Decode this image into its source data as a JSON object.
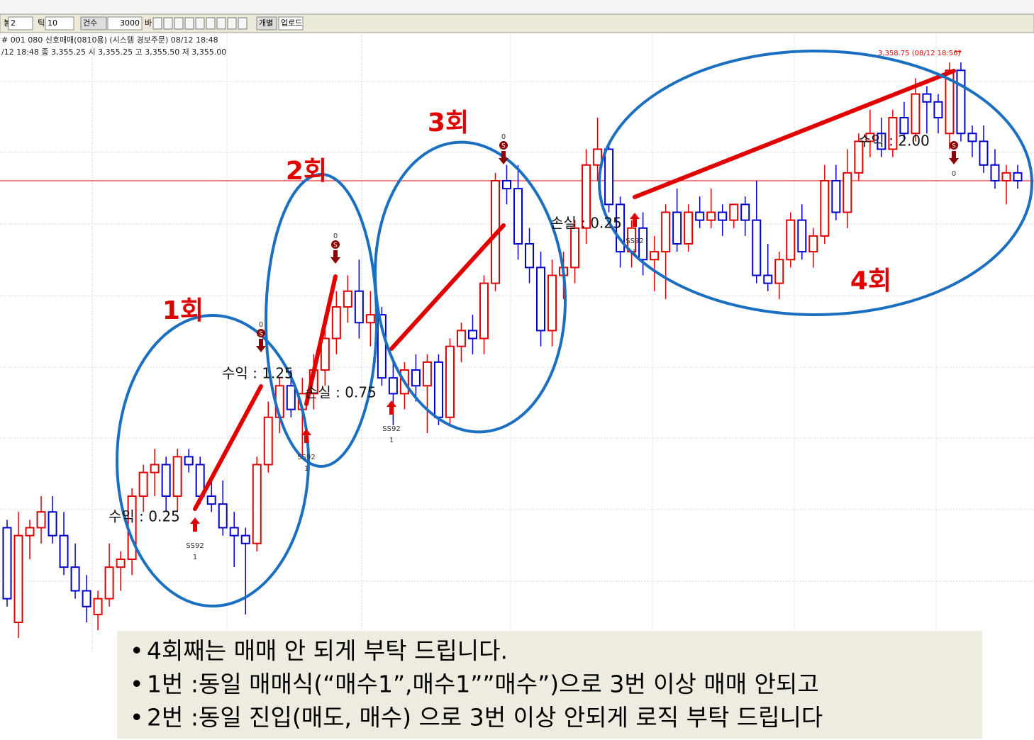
{
  "toolbar": {
    "items": [
      "봉",
      "2",
      "틱",
      "10",
      "건수",
      "3000",
      "바",
      "개별",
      "업로드"
    ]
  },
  "header": {
    "line1": "# 001 080 신호매매(0810용) (시스템 경보주문) 08/12 18:48",
    "line2": "/12 18:48  종 3,355.25  시 3,355.25 고 3,355.50 저 3,355.00"
  },
  "chart": {
    "ylim": [
      3340,
      3360
    ],
    "up_color": "#e00000",
    "down_color": "#0000cc",
    "high_label": "3,358.75 (08/12 18:56)",
    "candles": [
      [
        3344,
        3344.25,
        3341.5,
        3341.75
      ],
      [
        3341,
        3344.5,
        3340.5,
        3343.75
      ],
      [
        3343.75,
        3344.25,
        3343,
        3344
      ],
      [
        3344,
        3345,
        3343.5,
        3344.5
      ],
      [
        3344.5,
        3345,
        3343.5,
        3343.75
      ],
      [
        3343.75,
        3344.5,
        3342.5,
        3342.75
      ],
      [
        3342.75,
        3343.5,
        3341.75,
        3342
      ],
      [
        3342,
        3342.5,
        3341,
        3341.5
      ],
      [
        3341.25,
        3342,
        3340.75,
        3341.75
      ],
      [
        3341.75,
        3343.5,
        3341.5,
        3342.75
      ],
      [
        3342.75,
        3343.25,
        3342,
        3343
      ],
      [
        3343,
        3345.25,
        3342.5,
        3345
      ],
      [
        3345,
        3346,
        3344.5,
        3345.75
      ],
      [
        3345.75,
        3346.5,
        3345,
        3346
      ],
      [
        3346,
        3346.25,
        3344.5,
        3345
      ],
      [
        3345,
        3346.5,
        3344.5,
        3346.25
      ],
      [
        3346.25,
        3346.5,
        3345.75,
        3346
      ],
      [
        3346,
        3346.25,
        3344.75,
        3345
      ],
      [
        3345,
        3345.5,
        3344.5,
        3344.75
      ],
      [
        3344.75,
        3345.5,
        3343.75,
        3344
      ],
      [
        3344,
        3344.5,
        3342.75,
        3343.75
      ],
      [
        3343.75,
        3344,
        3341.25,
        3343.5
      ],
      [
        3343.5,
        3346.25,
        3343.25,
        3346
      ],
      [
        3346,
        3348,
        3345.75,
        3347.5
      ],
      [
        3347.5,
        3348.75,
        3347,
        3348.5
      ],
      [
        3348.5,
        3349,
        3347.5,
        3347.75
      ],
      [
        3347.75,
        3348.75,
        3346.25,
        3348.25
      ],
      [
        3348.25,
        3349.5,
        3347.75,
        3349
      ],
      [
        3349,
        3350.25,
        3348.5,
        3350
      ],
      [
        3350,
        3351.5,
        3349.5,
        3351
      ],
      [
        3351,
        3352,
        3350.5,
        3351.5
      ],
      [
        3351.5,
        3352.5,
        3350,
        3350.5
      ],
      [
        3350.5,
        3351.5,
        3349.75,
        3350.75
      ],
      [
        3350.75,
        3351,
        3348.5,
        3348.75
      ],
      [
        3348.75,
        3349.25,
        3347.25,
        3348.25
      ],
      [
        3348.25,
        3349.25,
        3347.75,
        3349
      ],
      [
        3349,
        3349.5,
        3348,
        3348.5
      ],
      [
        3348.5,
        3349.5,
        3347,
        3349.25
      ],
      [
        3349.25,
        3349.5,
        3347.25,
        3347.5
      ],
      [
        3347.5,
        3350,
        3347.25,
        3349.75
      ],
      [
        3349.75,
        3350.5,
        3349.25,
        3350.25
      ],
      [
        3350.25,
        3350.75,
        3349.5,
        3350
      ],
      [
        3350,
        3352,
        3349.5,
        3351.75
      ],
      [
        3351.75,
        3355.25,
        3351.5,
        3355
      ],
      [
        3355,
        3355.5,
        3354.25,
        3354.75
      ],
      [
        3354.75,
        3355.5,
        3352.5,
        3353
      ],
      [
        3353,
        3353.5,
        3351.75,
        3352.25
      ],
      [
        3352.25,
        3352.75,
        3349.75,
        3350.25
      ],
      [
        3350.25,
        3352.5,
        3349.75,
        3352
      ],
      [
        3352,
        3352.75,
        3351.25,
        3352.25
      ],
      [
        3352.25,
        3353.75,
        3351.75,
        3353.5
      ],
      [
        3353.5,
        3356,
        3353,
        3355.5
      ],
      [
        3355.5,
        3357,
        3355,
        3356
      ],
      [
        3356,
        3356.25,
        3354,
        3354.25
      ],
      [
        3354.25,
        3354.5,
        3352.25,
        3352.75
      ],
      [
        3352.75,
        3353.75,
        3352.25,
        3353.5
      ],
      [
        3353.5,
        3354,
        3352,
        3352.5
      ],
      [
        3352.5,
        3353.25,
        3351.5,
        3352.75
      ],
      [
        3352.75,
        3354.25,
        3351.25,
        3354
      ],
      [
        3354,
        3354.75,
        3352.75,
        3353
      ],
      [
        3353,
        3354.25,
        3352.75,
        3354
      ],
      [
        3354,
        3354.5,
        3353.5,
        3353.75
      ],
      [
        3353.75,
        3354.75,
        3353.5,
        3354
      ],
      [
        3354,
        3354.25,
        3353.25,
        3353.75
      ],
      [
        3353.75,
        3354.25,
        3353.5,
        3354.25
      ],
      [
        3354.25,
        3354.5,
        3353.25,
        3353.75
      ],
      [
        3353.75,
        3355,
        3351.75,
        3352
      ],
      [
        3352,
        3353,
        3351.5,
        3351.75
      ],
      [
        3351.75,
        3352.75,
        3351.25,
        3352.5
      ],
      [
        3352.5,
        3354,
        3352.25,
        3353.75
      ],
      [
        3353.75,
        3354.25,
        3352.5,
        3352.75
      ],
      [
        3352.75,
        3353.5,
        3352.25,
        3353.25
      ],
      [
        3353.25,
        3355.5,
        3353,
        3355
      ],
      [
        3355,
        3355.5,
        3353.75,
        3354
      ],
      [
        3354,
        3356,
        3353.5,
        3355.25
      ],
      [
        3355.25,
        3356.5,
        3355,
        3356.25
      ],
      [
        3356.25,
        3357.25,
        3355.75,
        3356.5
      ],
      [
        3356.5,
        3357,
        3355.75,
        3356
      ],
      [
        3356,
        3357.25,
        3355.75,
        3357
      ],
      [
        3357,
        3357.5,
        3356.25,
        3356.5
      ],
      [
        3356.5,
        3358.25,
        3356.25,
        3357.75
      ],
      [
        3357.75,
        3358,
        3356.5,
        3357.5
      ],
      [
        3357.5,
        3357.75,
        3356.5,
        3357
      ],
      [
        3356.5,
        3358.75,
        3356,
        3358.5
      ],
      [
        3358.5,
        3358.75,
        3356.25,
        3356.5
      ],
      [
        3356.5,
        3356.75,
        3355.75,
        3356.25
      ],
      [
        3356.25,
        3356.75,
        3355.25,
        3355.5
      ],
      [
        3355.5,
        3356,
        3354.75,
        3355
      ],
      [
        3355,
        3355.5,
        3354.25,
        3355.25
      ],
      [
        3355.25,
        3355.5,
        3354.75,
        3355
      ]
    ]
  },
  "rounds": [
    "1회",
    "2회",
    "3회",
    "4회"
  ],
  "trades": [
    "수익 : 0.25",
    "수익 : 1.25",
    "손실 : 0.75",
    "손실 : 0.25",
    "수익 : 2.00"
  ],
  "signals": {
    "entry_label": "SS92",
    "entry_qty": "1",
    "exit_qty": "0",
    "exit_icon": "S"
  },
  "notes": [
    "4회째는 매매 안 되게 부탁 드립니다.",
    "1번 :동일 매매식(“매수1”,매수1””매수”)으로 3번 이상 매매 안되고",
    "2번 :동일 진입(매도, 매수) 으로 3번 이상 안되게 로직 부탁 드립니다"
  ]
}
